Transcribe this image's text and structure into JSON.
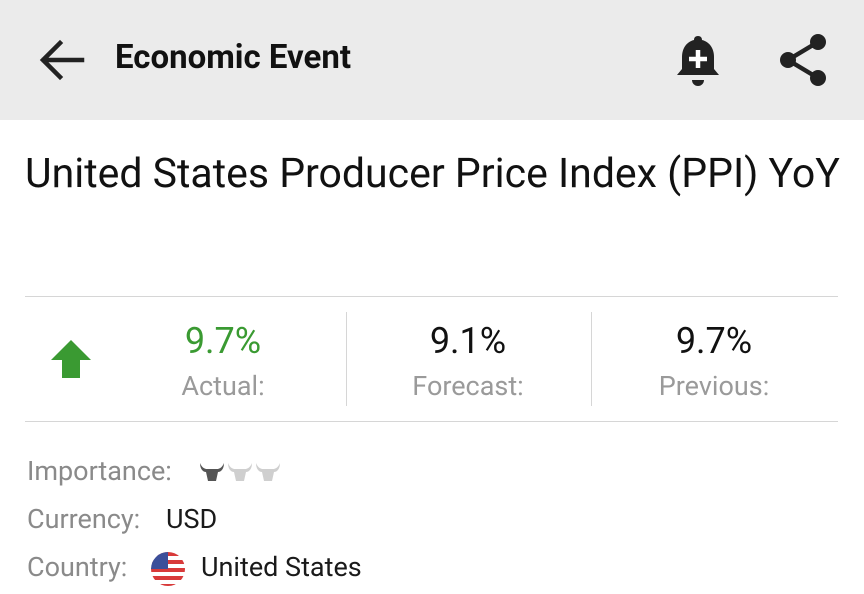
{
  "header": {
    "title": "Economic Event"
  },
  "event": {
    "title": "United States Producer Price Index (PPI) YoY"
  },
  "stats": [
    {
      "value": "9.7%",
      "label": "Actual:",
      "color": "#3a9a32"
    },
    {
      "value": "9.1%",
      "label": "Forecast:",
      "color": "#111111"
    },
    {
      "value": "9.7%",
      "label": "Previous:",
      "color": "#111111"
    }
  ],
  "details": {
    "importance_label": "Importance:",
    "importance": 1,
    "currency_label": "Currency:",
    "currency": "USD",
    "country_label": "Country:",
    "country": "United States"
  }
}
